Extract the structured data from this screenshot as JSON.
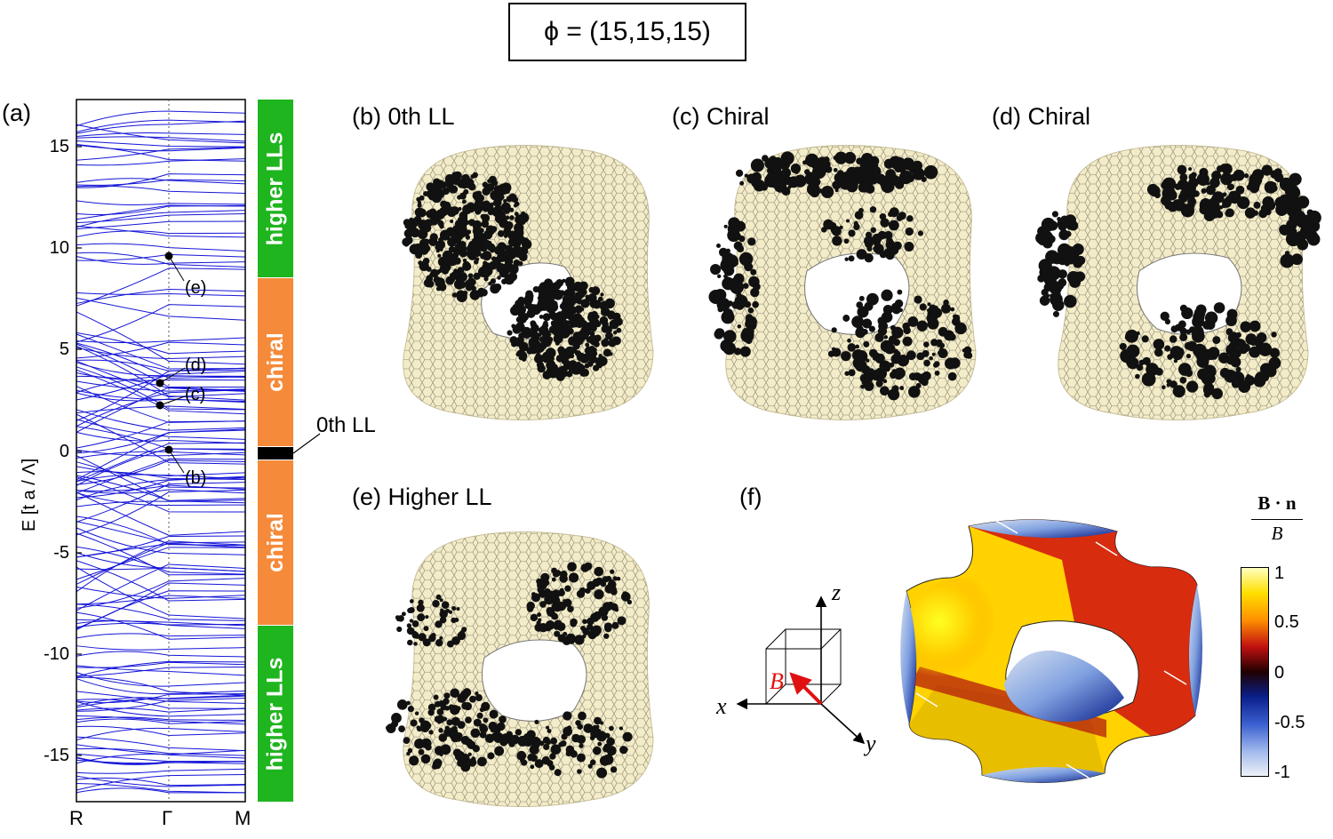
{
  "title": "ϕ = (15,15,15)",
  "panels": {
    "a": "(a)",
    "b": "(b) 0th LL",
    "c": "(c) Chiral",
    "d": "(d) Chiral",
    "e": "(e) Higher LL",
    "f": "(f)"
  },
  "band_plot": {
    "ylabel": "E  [t a / Λ]",
    "yticks": [
      "15",
      "10",
      "5",
      "0",
      "-5",
      "-10",
      "-15"
    ],
    "xticks": [
      "R",
      "Γ",
      "M"
    ],
    "markers": [
      "(e)",
      "(d)",
      "(c)",
      "(b)"
    ],
    "line_color": "#1515d8"
  },
  "side_bar": {
    "segments": [
      {
        "label": "higher LLs",
        "color": "#1fb51f"
      },
      {
        "label": "chiral",
        "color": "#f58a3a"
      },
      {
        "label": "",
        "color": "#000000"
      },
      {
        "label": "chiral",
        "color": "#f58a3a"
      },
      {
        "label": "higher LLs",
        "color": "#1fb51f"
      }
    ],
    "zeroth_label": "0th LL"
  },
  "axes_diagram": {
    "x": "x",
    "y": "y",
    "z": "z",
    "B": "B"
  },
  "colorbar": {
    "title_num": "B · n",
    "title_den": "B",
    "ticks": [
      "1",
      "0.5",
      "0",
      "-0.5",
      "-1"
    ]
  }
}
